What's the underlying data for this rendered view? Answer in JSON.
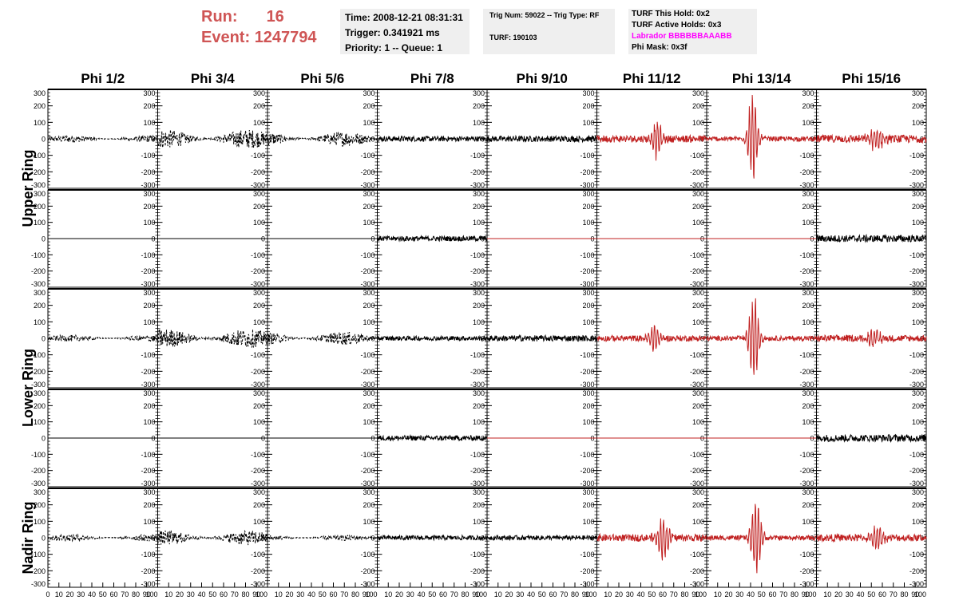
{
  "header": {
    "run_label": "Run:",
    "run_value": "16",
    "event_label": "Event:",
    "event_value": "1247794",
    "label_color": "#cf5555"
  },
  "time_box": {
    "time": "Time: 2008-12-21 08:31:31",
    "trigger": "Trigger: 0.341921 ms",
    "priority": "Priority: 1 -- Queue: 1"
  },
  "trig_box": {
    "trig": "Trig Num: 59022 -- Trig Type: RF",
    "turf": "TURF: 190103"
  },
  "turf_box": {
    "this_hold": "TURF This Hold: 0x2",
    "active_holds": "TURF Active Holds: 0x3",
    "labrador": "Labrador BBBBBBAAABB",
    "labrador_color": "#ff00ff",
    "phi_mask": "Phi Mask: 0x3f"
  },
  "chart_data": {
    "type": "line",
    "layout": "grid",
    "columns": [
      "Phi 1/2",
      "Phi 3/4",
      "Phi 5/6",
      "Phi 7/8",
      "Phi 9/10",
      "Phi 11/12",
      "Phi 13/14",
      "Phi 15/16"
    ],
    "rows": [
      "Upper Ring",
      "",
      "Lower Ring",
      "",
      "Nadir Ring"
    ],
    "ylim": [
      -300,
      300
    ],
    "xlim": [
      0,
      100
    ],
    "ytick_labels": [
      "300",
      "200",
      "100",
      "0",
      "-100",
      "-200",
      "-300"
    ],
    "xtick_labels": [
      "0",
      "10",
      "20",
      "30",
      "40",
      "50",
      "60",
      "70",
      "80",
      "90",
      "100"
    ],
    "colors": {
      "normal": "#000000",
      "triggered": "#c02020"
    },
    "panels": [
      [
        {
          "kind": "noise",
          "amp": 22,
          "color": "normal",
          "dashed": true
        },
        {
          "kind": "noise",
          "amp": 58,
          "color": "normal",
          "dashed": true
        },
        {
          "kind": "noise",
          "amp": 45,
          "color": "normal",
          "dashed": true
        },
        {
          "kind": "noise",
          "amp": 16,
          "color": "normal"
        },
        {
          "kind": "noise",
          "amp": 18,
          "color": "normal"
        },
        {
          "kind": "pulse",
          "amp": 22,
          "peak": 130,
          "center": 55,
          "width": 5,
          "color": "triggered"
        },
        {
          "kind": "pulse",
          "amp": 15,
          "peak": 290,
          "center": 42,
          "width": 5,
          "color": "triggered"
        },
        {
          "kind": "pulse",
          "amp": 24,
          "peak": 65,
          "center": 55,
          "width": 8,
          "color": "triggered"
        }
      ],
      [
        {
          "kind": "flat",
          "color": "normal"
        },
        {
          "kind": "flat",
          "color": "normal"
        },
        {
          "kind": "flat",
          "color": "normal"
        },
        {
          "kind": "noise",
          "amp": 16,
          "color": "normal"
        },
        {
          "kind": "flat",
          "color": "triggered"
        },
        {
          "kind": "flat",
          "color": "triggered"
        },
        {
          "kind": "flat",
          "color": "triggered"
        },
        {
          "kind": "noise",
          "amp": 22,
          "color": "normal"
        }
      ],
      [
        {
          "kind": "noise",
          "amp": 20,
          "color": "normal",
          "dashed": true
        },
        {
          "kind": "noise",
          "amp": 58,
          "color": "normal",
          "dashed": true
        },
        {
          "kind": "noise",
          "amp": 40,
          "color": "normal",
          "dashed": true
        },
        {
          "kind": "noise",
          "amp": 14,
          "color": "normal"
        },
        {
          "kind": "noise",
          "amp": 18,
          "color": "normal"
        },
        {
          "kind": "pulse",
          "amp": 18,
          "peak": 105,
          "center": 52,
          "width": 5,
          "color": "triggered"
        },
        {
          "kind": "pulse",
          "amp": 15,
          "peak": 300,
          "center": 43,
          "width": 5,
          "color": "triggered"
        },
        {
          "kind": "pulse",
          "amp": 20,
          "peak": 60,
          "center": 52,
          "width": 7,
          "color": "triggered"
        }
      ],
      [
        {
          "kind": "flat",
          "color": "normal"
        },
        {
          "kind": "flat",
          "color": "normal"
        },
        {
          "kind": "flat",
          "color": "normal"
        },
        {
          "kind": "noise",
          "amp": 16,
          "color": "normal"
        },
        {
          "kind": "flat",
          "color": "triggered"
        },
        {
          "kind": "flat",
          "color": "triggered"
        },
        {
          "kind": "flat",
          "color": "triggered"
        },
        {
          "kind": "noise",
          "amp": 22,
          "color": "normal"
        }
      ],
      [
        {
          "kind": "noise",
          "amp": 22,
          "color": "normal",
          "dashed": true
        },
        {
          "kind": "noise",
          "amp": 45,
          "color": "normal",
          "dashed": true
        },
        {
          "kind": "noise",
          "amp": 18,
          "color": "normal",
          "dashed": true
        },
        {
          "kind": "noise",
          "amp": 14,
          "color": "normal"
        },
        {
          "kind": "noise",
          "amp": 14,
          "color": "normal"
        },
        {
          "kind": "pulse",
          "amp": 22,
          "peak": 150,
          "center": 60,
          "width": 6,
          "color": "triggered"
        },
        {
          "kind": "pulse",
          "amp": 15,
          "peak": 280,
          "center": 45,
          "width": 5,
          "color": "triggered"
        },
        {
          "kind": "pulse",
          "amp": 22,
          "peak": 100,
          "center": 55,
          "width": 6,
          "color": "triggered"
        }
      ]
    ]
  }
}
